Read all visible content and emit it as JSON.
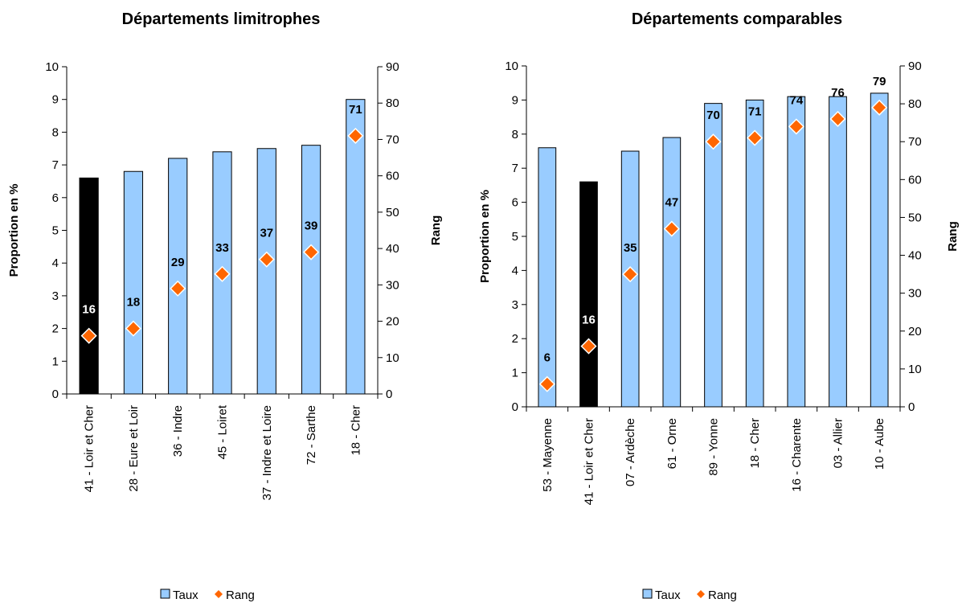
{
  "legend": {
    "taux": "Taux",
    "rang": "Rang"
  },
  "colors": {
    "bar": "#99ccff",
    "bar_highlight": "#000000",
    "marker": "#ff6600",
    "marker_stroke": "#ffffff"
  },
  "chart_data": [
    {
      "type": "bar",
      "title": "Départements limitrophes",
      "ylabel": "Proportion en %",
      "y2label": "Rang",
      "ylim": [
        0,
        10
      ],
      "y2lim": [
        0,
        90
      ],
      "yticks": [
        "0",
        "1",
        "2",
        "3",
        "4",
        "5",
        "6",
        "7",
        "8",
        "9",
        "10"
      ],
      "y2ticks": [
        "0",
        "10",
        "20",
        "30",
        "40",
        "50",
        "60",
        "70",
        "80",
        "90"
      ],
      "categories": [
        "41 - Loir et Cher",
        "28 - Eure et Loir",
        "36 - Indre",
        "45 - Loiret",
        "37 - Indre et Loire",
        "72 - Sarthe",
        "18 - Cher"
      ],
      "highlight_index": 0,
      "series": [
        {
          "name": "Taux",
          "kind": "bar",
          "axis": "left",
          "values": [
            6.6,
            6.8,
            7.2,
            7.4,
            7.5,
            7.6,
            9.0
          ]
        },
        {
          "name": "Rang",
          "kind": "marker",
          "axis": "right",
          "values": [
            16,
            18,
            29,
            33,
            37,
            39,
            71
          ],
          "labels": [
            "16",
            "18",
            "29",
            "33",
            "37",
            "39",
            "71"
          ]
        }
      ],
      "legend_position": "bottom"
    },
    {
      "type": "bar",
      "title": "Départements comparables",
      "ylabel": "Proportion en %",
      "y2label": "Rang",
      "ylim": [
        0,
        10
      ],
      "y2lim": [
        0,
        90
      ],
      "yticks": [
        "0",
        "1",
        "2",
        "3",
        "4",
        "5",
        "6",
        "7",
        "8",
        "9",
        "10"
      ],
      "y2ticks": [
        "0",
        "10",
        "20",
        "30",
        "40",
        "50",
        "60",
        "70",
        "80",
        "90"
      ],
      "categories": [
        "53 - Mayenne",
        "41 - Loir et Cher",
        "07 - Ardèche",
        "61 - Orne",
        "89 - Yonne",
        "18 - Cher",
        "16 - Charente",
        "03 - Allier",
        "10 - Aube"
      ],
      "highlight_index": 1,
      "series": [
        {
          "name": "Taux",
          "kind": "bar",
          "axis": "left",
          "values": [
            7.6,
            6.6,
            7.5,
            7.9,
            8.9,
            9.0,
            9.1,
            9.1,
            9.2
          ]
        },
        {
          "name": "Rang",
          "kind": "marker",
          "axis": "right",
          "values": [
            6,
            16,
            35,
            47,
            70,
            71,
            74,
            76,
            79
          ],
          "labels": [
            "6",
            "16",
            "35",
            "47",
            "70",
            "71",
            "74",
            "76",
            "79"
          ]
        }
      ],
      "legend_position": "bottom"
    }
  ]
}
